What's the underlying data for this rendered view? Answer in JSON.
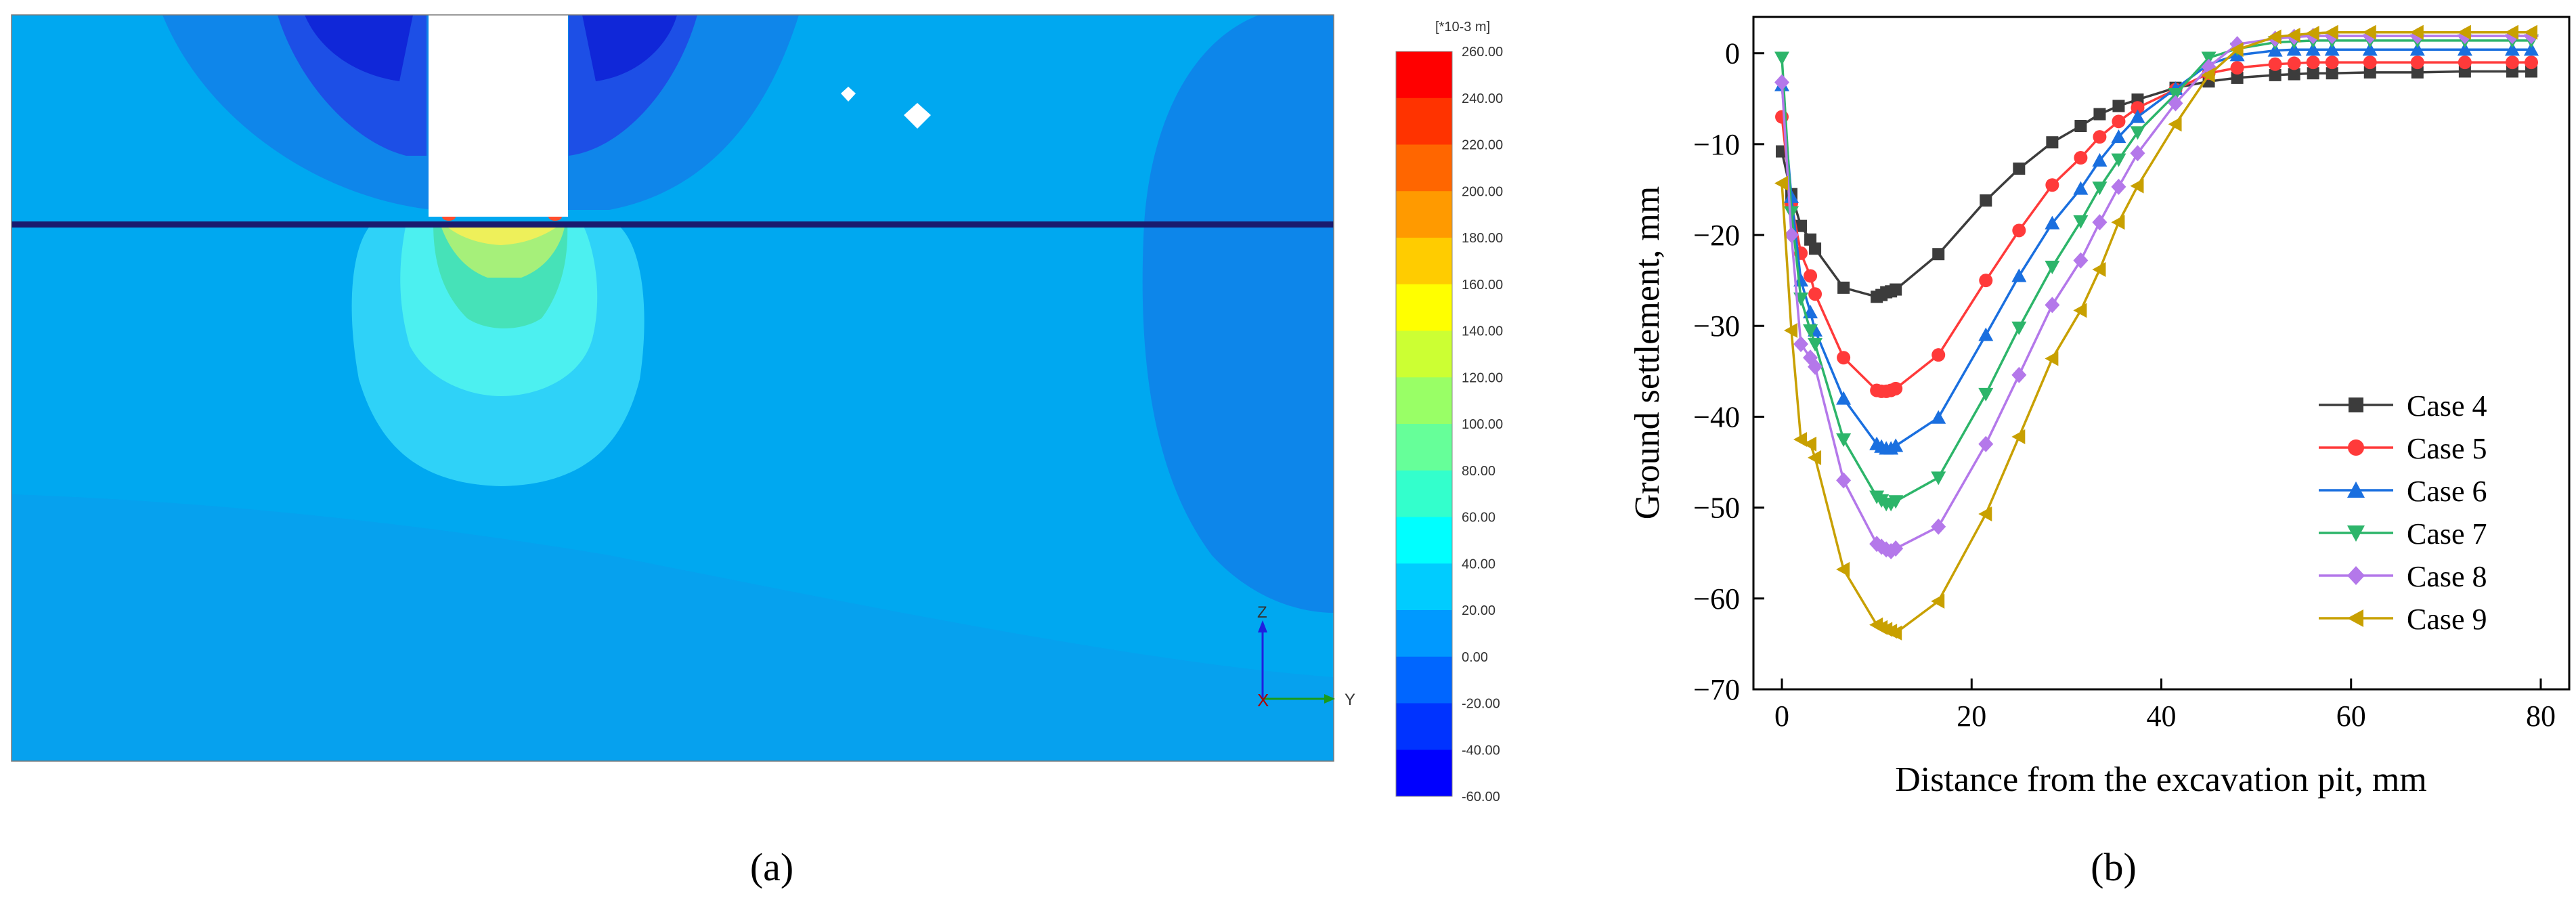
{
  "contour": {
    "legend_unit": "[*10-3 m]",
    "legend_ticks": [
      "260.00",
      "240.00",
      "220.00",
      "200.00",
      "180.00",
      "160.00",
      "140.00",
      "120.00",
      "100.00",
      "80.00",
      "60.00",
      "40.00",
      "20.00",
      "0.00",
      "-20.00",
      "-40.00",
      "-60.00"
    ],
    "legend_colors": [
      "#ff0000",
      "#ff3300",
      "#ff6600",
      "#ff9a00",
      "#ffcc00",
      "#ffff00",
      "#ccff33",
      "#99ff66",
      "#66ff99",
      "#33ffcc",
      "#00ffff",
      "#00ccff",
      "#0099ff",
      "#0066ff",
      "#0033ff",
      "#0000ff"
    ],
    "axis_labels": {
      "z": "Z",
      "y": "Y",
      "x": "X"
    },
    "panel_label": "(a)"
  },
  "chart_data": {
    "type": "line",
    "xlabel": "Distance from the excavation pit, mm",
    "ylabel": "Ground settlement, mm",
    "xlim": [
      -3,
      83
    ],
    "ylim": [
      -70,
      4
    ],
    "xticks": [
      0,
      20,
      40,
      60,
      80
    ],
    "yticks": [
      0,
      -10,
      -20,
      -30,
      -40,
      -50,
      -60,
      -70
    ],
    "grid": false,
    "legend_position": "right-center",
    "panel_label": "(b)",
    "x": [
      0,
      1,
      2,
      3,
      3.5,
      6.5,
      10,
      10.5,
      11,
      11.5,
      12,
      16.5,
      21.5,
      25,
      28.5,
      31.5,
      33.5,
      35.5,
      37.5,
      41.5,
      45,
      48,
      52,
      54,
      56,
      58,
      62,
      67,
      72,
      77,
      79
    ],
    "series": [
      {
        "name": "Case 4",
        "color": "#3c3c3c",
        "marker": "square",
        "values": [
          -10.8,
          -15.5,
          -19,
          -20.5,
          -21.5,
          -25.8,
          -26.8,
          -26.6,
          -26.3,
          -26.2,
          -26.0,
          -22.1,
          -16.2,
          -12.7,
          -9.8,
          -8.0,
          -6.7,
          -5.8,
          -5.1,
          -3.8,
          -3.1,
          -2.7,
          -2.4,
          -2.3,
          -2.2,
          -2.2,
          -2.1,
          -2.1,
          -2.0,
          -2.0,
          -2.0
        ]
      },
      {
        "name": "Case 5",
        "color": "#ff3a3a",
        "marker": "circle",
        "values": [
          -7.0,
          -16.5,
          -22,
          -24.5,
          -26.5,
          -33.5,
          -37.1,
          -37.2,
          -37.2,
          -37.1,
          -36.9,
          -33.2,
          -25.0,
          -19.5,
          -14.5,
          -11.5,
          -9.2,
          -7.5,
          -6.0,
          -4.0,
          -2.2,
          -1.6,
          -1.2,
          -1.1,
          -1.0,
          -1.0,
          -1.0,
          -1.0,
          -1.0,
          -1.0,
          -1.0
        ]
      },
      {
        "name": "Case 6",
        "color": "#1a6fdf",
        "marker": "triangle-up",
        "values": [
          -3.5,
          -15.8,
          -25,
          -28.5,
          -30.5,
          -38.0,
          -43.0,
          -43.3,
          -43.5,
          -43.5,
          -43.2,
          -40.1,
          -31.0,
          -24.5,
          -18.7,
          -14.9,
          -11.8,
          -9.2,
          -7.0,
          -3.9,
          -1.2,
          -0.2,
          0.3,
          0.4,
          0.4,
          0.4,
          0.4,
          0.4,
          0.4,
          0.4,
          0.4
        ]
      },
      {
        "name": "Case 7",
        "color": "#2db56a",
        "marker": "triangle-down",
        "values": [
          -0.5,
          -17.5,
          -27,
          -30.5,
          -32.0,
          -42.5,
          -48.8,
          -49.2,
          -49.6,
          -49.6,
          -49.3,
          -46.7,
          -37.5,
          -30.2,
          -23.5,
          -18.5,
          -14.8,
          -11.7,
          -8.7,
          -4.5,
          -0.5,
          0.5,
          1.2,
          1.3,
          1.4,
          1.4,
          1.4,
          1.4,
          1.4,
          1.4,
          1.4
        ]
      },
      {
        "name": "Case 8",
        "color": "#b478ea",
        "marker": "diamond",
        "values": [
          -3.2,
          -20.0,
          -32,
          -33.5,
          -34.5,
          -47.0,
          -54.0,
          -54.3,
          -54.6,
          -54.8,
          -54.5,
          -52.1,
          -43.0,
          -35.4,
          -27.7,
          -22.8,
          -18.6,
          -14.7,
          -11.0,
          -5.5,
          -1.5,
          1.0,
          1.6,
          1.8,
          1.9,
          1.9,
          1.9,
          1.9,
          1.9,
          1.9,
          1.9
        ]
      },
      {
        "name": "Case 9",
        "color": "#c8a000",
        "marker": "triangle-left",
        "values": [
          -14.3,
          -30.5,
          -42.5,
          -43.0,
          -44.5,
          -56.8,
          -62.9,
          -63.2,
          -63.4,
          -63.6,
          -63.8,
          -60.3,
          -50.7,
          -42.2,
          -33.6,
          -28.3,
          -23.8,
          -18.6,
          -14.6,
          -7.8,
          -2.4,
          0.4,
          1.8,
          2.0,
          2.2,
          2.3,
          2.3,
          2.3,
          2.3,
          2.3,
          2.3
        ]
      }
    ]
  }
}
